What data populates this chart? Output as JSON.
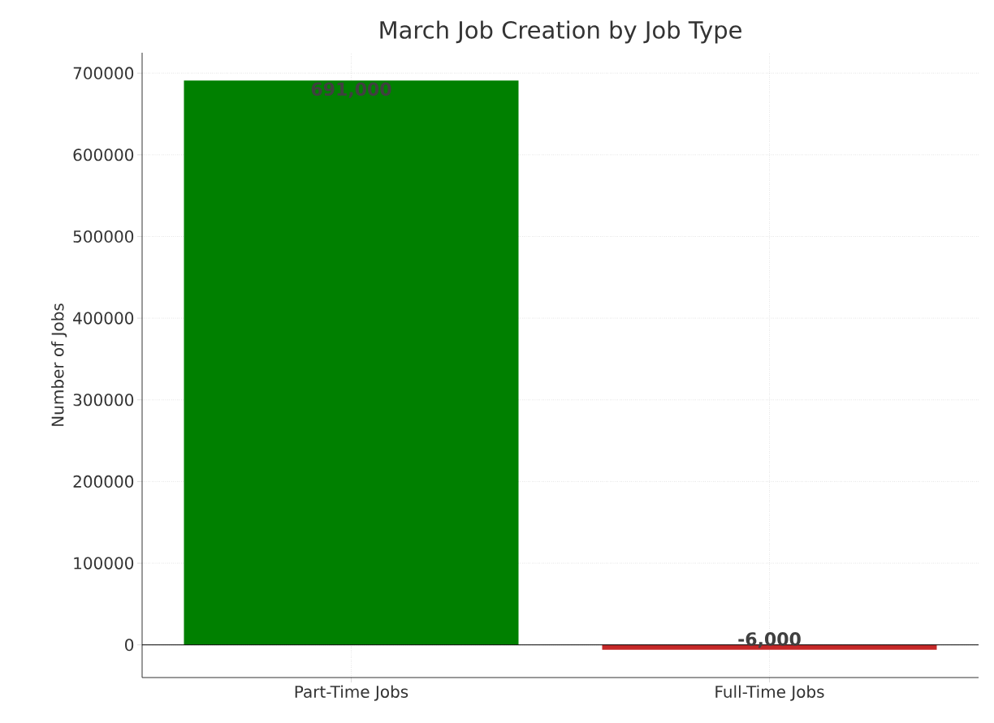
{
  "chart_data": {
    "type": "bar",
    "title": "March Job Creation by Job Type",
    "ylabel": "Number of Jobs",
    "categories": [
      "Part-Time Jobs",
      "Full-Time Jobs"
    ],
    "values": [
      691000,
      -6000
    ],
    "colors": [
      "#008000",
      "#c62828"
    ],
    "value_labels": [
      "691,000",
      "-6,000"
    ],
    "ylim": [
      -40000,
      725000
    ],
    "yticks": [
      0,
      100000,
      200000,
      300000,
      400000,
      500000,
      600000,
      700000
    ],
    "grid": true,
    "ref_lines": [
      {
        "axis": "y",
        "value": 0,
        "color": "#000000"
      }
    ]
  }
}
